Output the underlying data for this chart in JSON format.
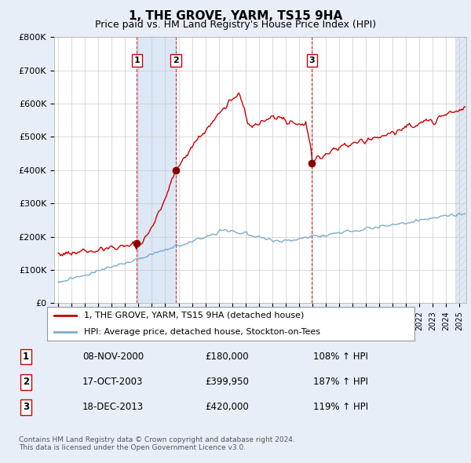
{
  "title": "1, THE GROVE, YARM, TS15 9HA",
  "subtitle": "Price paid vs. HM Land Registry's House Price Index (HPI)",
  "title_fontsize": 11,
  "subtitle_fontsize": 9,
  "ylim": [
    0,
    800000
  ],
  "yticks": [
    0,
    100000,
    200000,
    300000,
    400000,
    500000,
    600000,
    700000,
    800000
  ],
  "ytick_labels": [
    "£0",
    "£100K",
    "£200K",
    "£300K",
    "£400K",
    "£500K",
    "£600K",
    "£700K",
    "£800K"
  ],
  "background_color": "#e8eef8",
  "plot_background": "#ffffff",
  "grid_color": "#cccccc",
  "red_line_color": "#cc0000",
  "blue_line_color": "#7aadcf",
  "sale_marker_color": "#880000",
  "shade_color": "#dce8f5",
  "hatch_color": "#c8d4e8",
  "trans_dates": [
    2000.87,
    2003.8,
    2013.96
  ],
  "trans_prices": [
    180000,
    399950,
    420000
  ],
  "trans_labels": [
    "1",
    "2",
    "3"
  ],
  "legend_entries": [
    "1, THE GROVE, YARM, TS15 9HA (detached house)",
    "HPI: Average price, detached house, Stockton-on-Tees"
  ],
  "footer_text": "Contains HM Land Registry data © Crown copyright and database right 2024.\nThis data is licensed under the Open Government Licence v3.0.",
  "table_rows": [
    [
      "1",
      "08-NOV-2000",
      "£180,000",
      "108% ↑ HPI"
    ],
    [
      "2",
      "17-OCT-2003",
      "£399,950",
      "187% ↑ HPI"
    ],
    [
      "3",
      "18-DEC-2013",
      "£420,000",
      "119% ↑ HPI"
    ]
  ]
}
